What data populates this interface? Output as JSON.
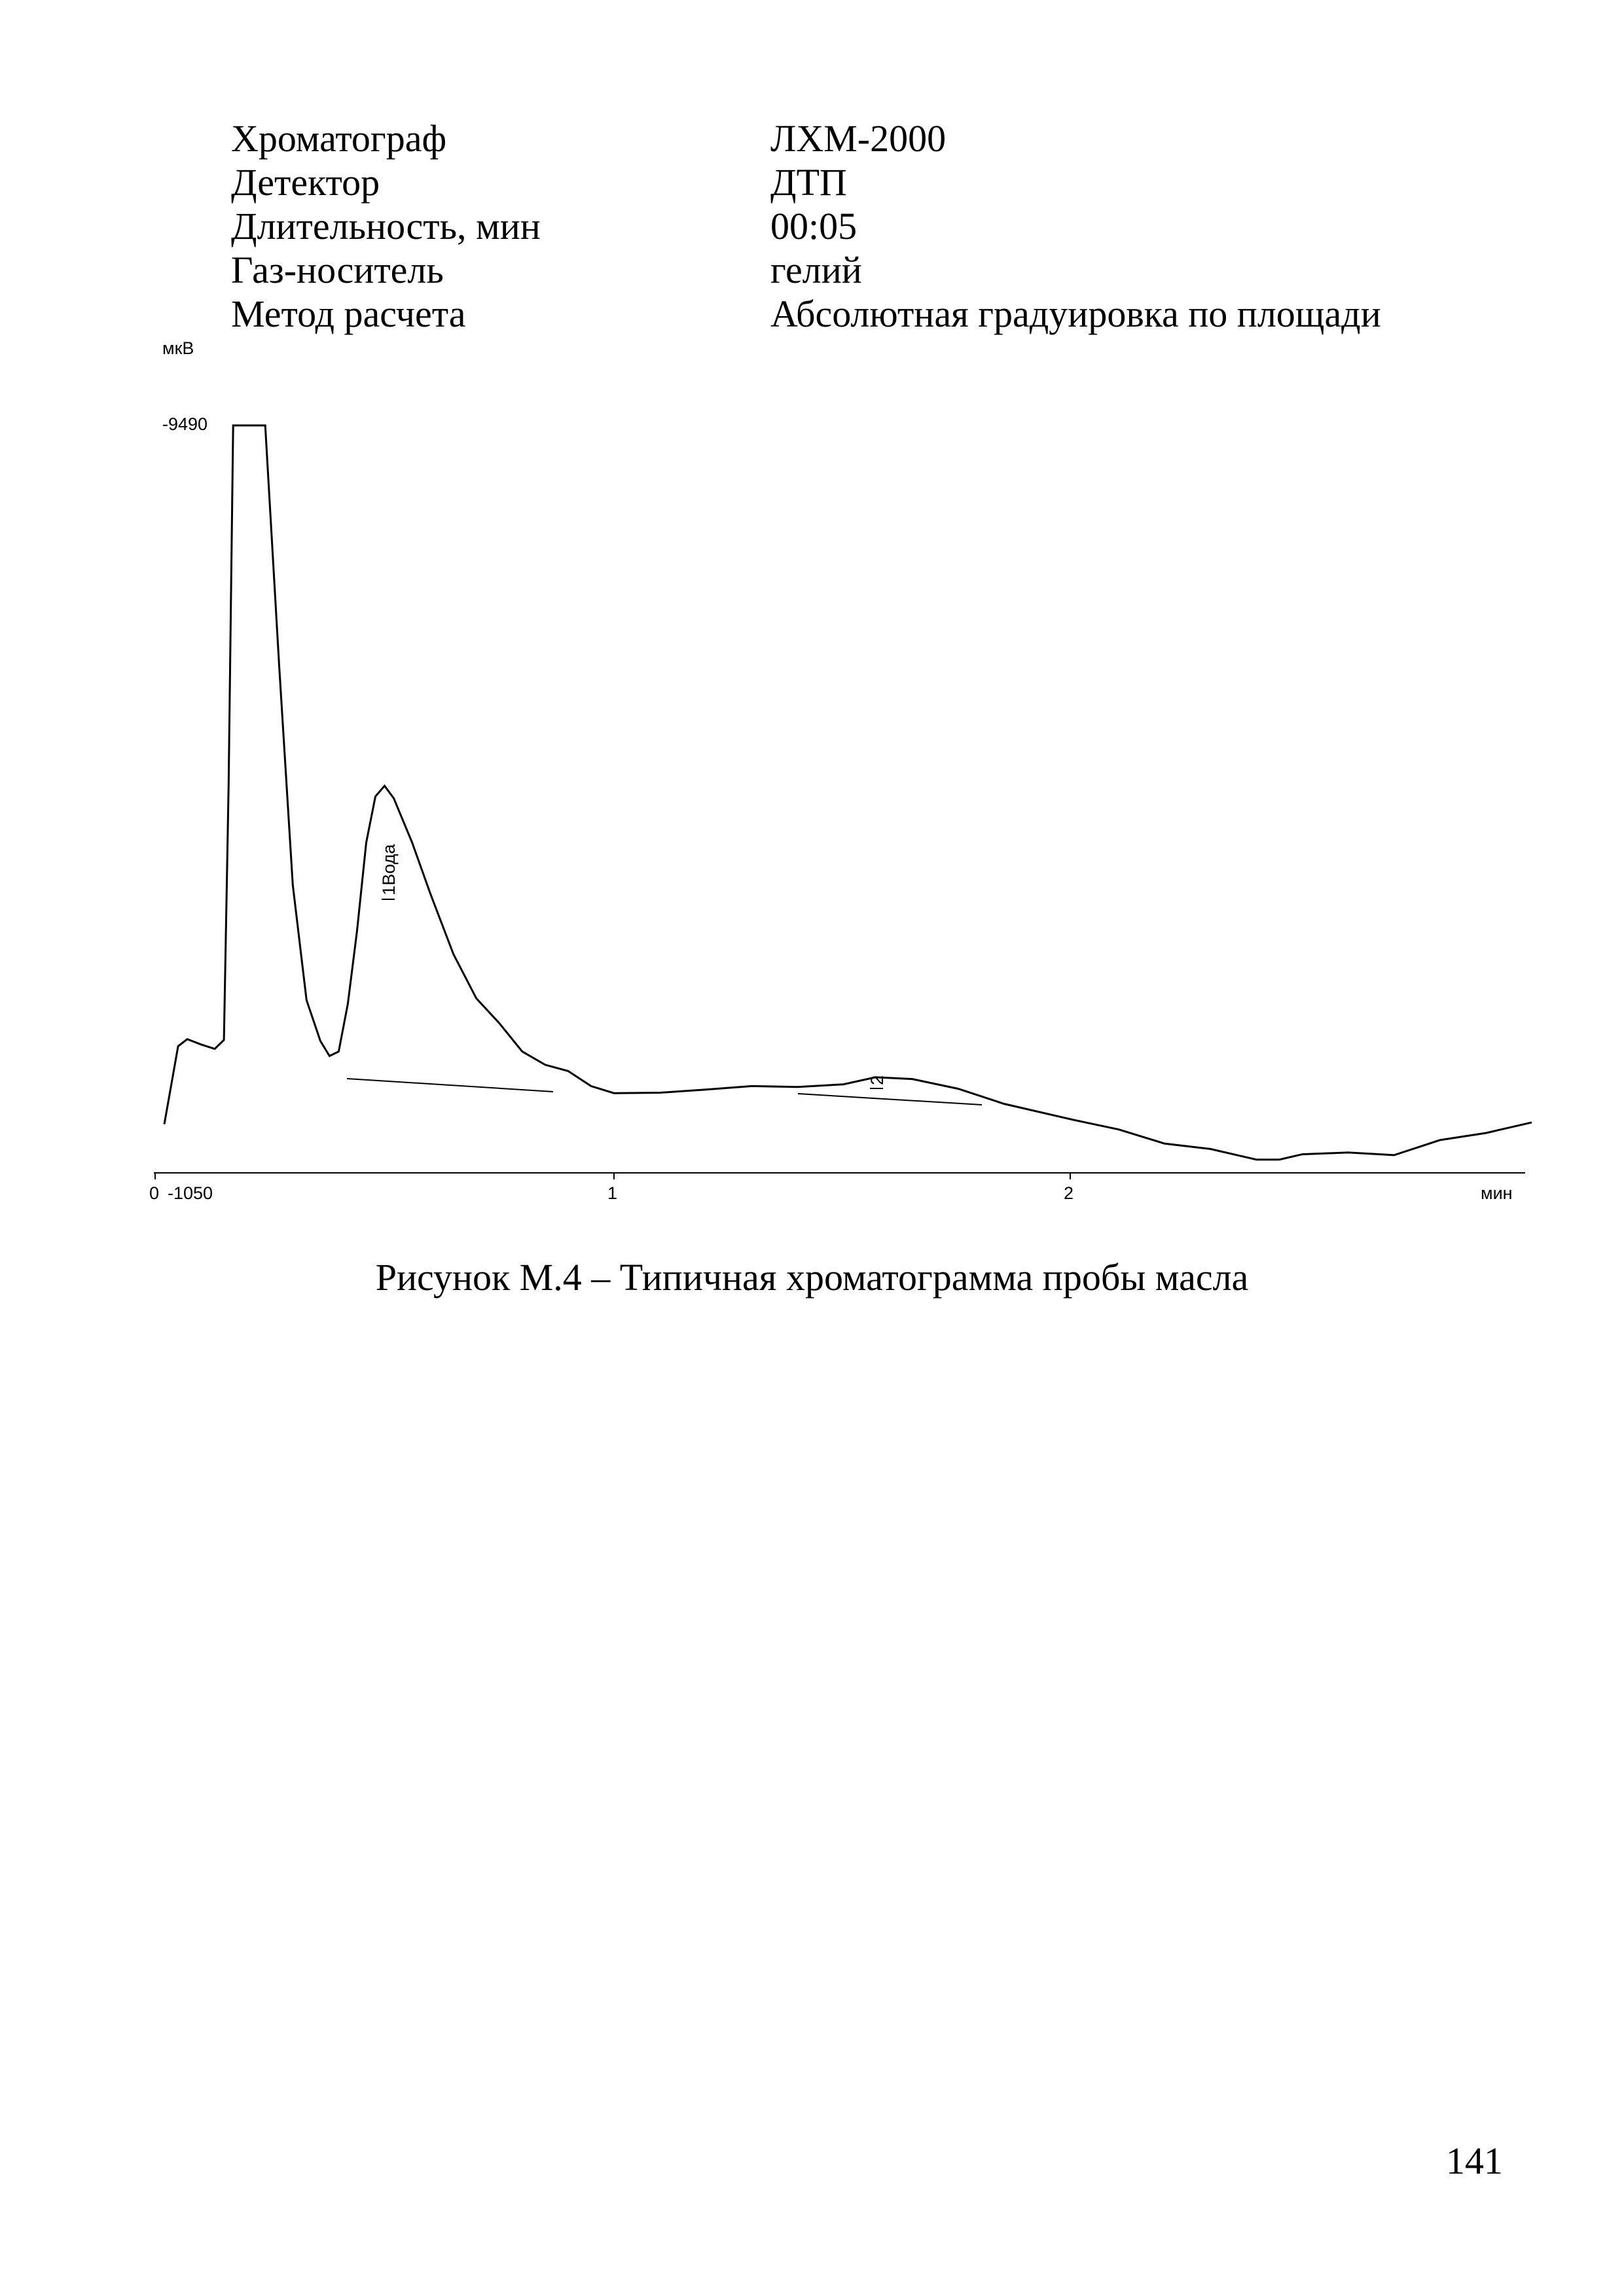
{
  "parameters": [
    {
      "name": "Хроматограф",
      "value": "ЛХМ-2000"
    },
    {
      "name": "Детектор",
      "value": "ДТП"
    },
    {
      "name": "Длительность, мин",
      "value": "00:05"
    },
    {
      "name": "Газ-носитель",
      "value": "гелий"
    },
    {
      "name": "Метод расчета",
      "value": "Абсолютная градуировка по площади"
    }
  ],
  "caption": "Рисунок М.4 – Типичная хроматограмма пробы масла",
  "page_number": "141",
  "chart_data": {
    "type": "line",
    "ylabel": "мкВ",
    "xlabel": "мин",
    "x_ticks": [
      "0",
      "1",
      "2"
    ],
    "y_ticks": [
      "-9490",
      "-1050"
    ],
    "xlim": [
      0,
      3.0
    ],
    "ylim": [
      -1050,
      -9490
    ],
    "peaks": [
      {
        "label": "1Вода",
        "x": 0.5
      },
      {
        "label": "2",
        "x": 1.57
      }
    ],
    "series": [
      {
        "x": [
          0.02,
          0.05,
          0.07,
          0.1,
          0.13,
          0.15,
          0.16,
          0.17,
          0.18,
          0.19,
          0.2,
          0.22,
          0.24,
          0.27,
          0.3,
          0.33,
          0.36,
          0.38,
          0.4,
          0.42,
          0.44,
          0.46,
          0.48,
          0.5,
          0.52,
          0.56,
          0.6,
          0.65,
          0.7,
          0.75,
          0.8,
          0.85,
          0.9,
          0.95,
          1.0,
          1.1,
          1.2,
          1.3,
          1.4,
          1.5,
          1.57,
          1.65,
          1.75,
          1.85,
          2.0,
          2.1,
          2.2,
          2.3,
          2.4,
          2.45,
          2.5,
          2.6,
          2.7,
          2.8,
          2.9,
          3.0
        ],
        "y": [
          -1600,
          -2480,
          -2560,
          -2500,
          -2450,
          -2550,
          -5400,
          -9490,
          -9490,
          -9490,
          -9490,
          -9490,
          -9490,
          -6800,
          -4300,
          -3000,
          -2540,
          -2370,
          -2420,
          -2960,
          -3780,
          -4780,
          -5300,
          -5420,
          -5280,
          -4780,
          -4200,
          -3520,
          -3020,
          -2740,
          -2420,
          -2270,
          -2200,
          -2030,
          -1950,
          -1955,
          -1990,
          -2030,
          -2020,
          -2050,
          -2130,
          -2110,
          -2000,
          -1830,
          -1650,
          -1540,
          -1380,
          -1320,
          -1200,
          -1200,
          -1260,
          -1280,
          -1250,
          -1420,
          -1500,
          -1620
        ]
      }
    ]
  }
}
